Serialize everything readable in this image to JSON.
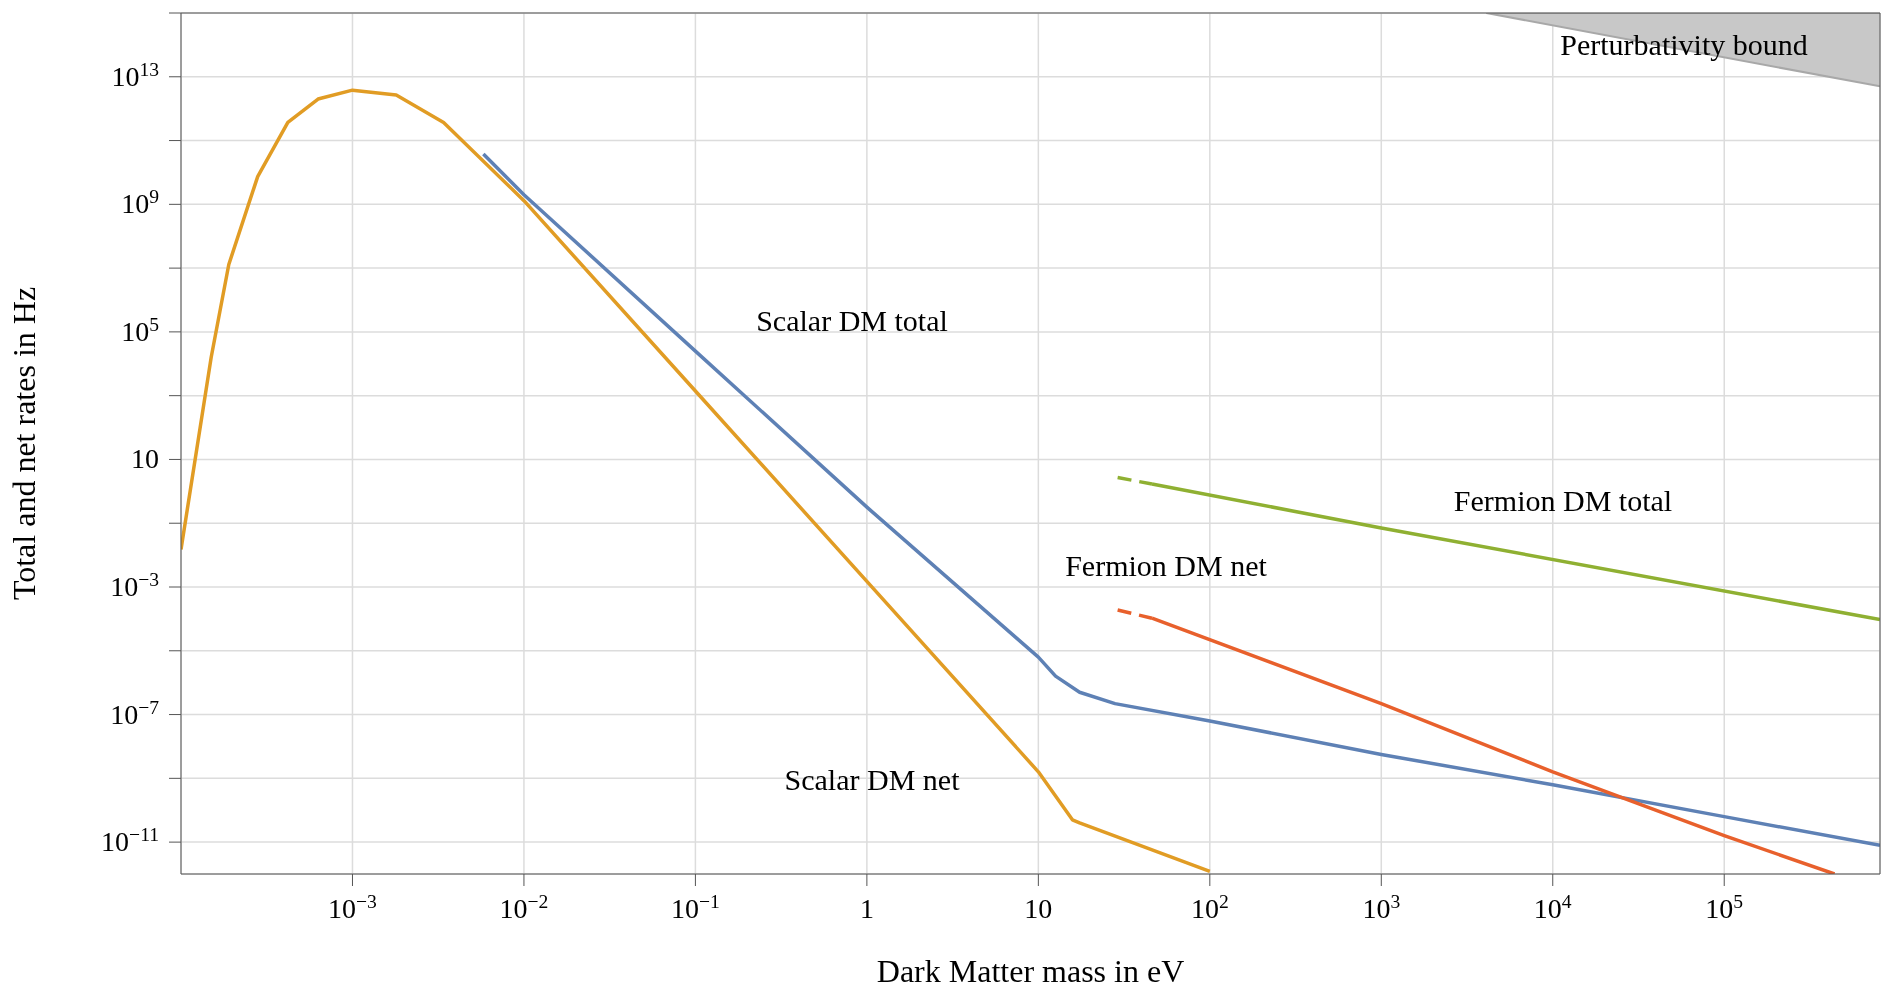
{
  "chart_data": {
    "type": "line",
    "xlabel": "Dark Matter mass in eV",
    "ylabel": "Total and net rates in Hz",
    "log": "xy",
    "grid": true,
    "marker": "none",
    "line_style": "solid",
    "xlim": [
      0.0001,
      810000
    ],
    "ylim": [
      1e-12,
      1000000000000000.0
    ],
    "xticks": [
      {
        "value": 0.001,
        "label": "10$^{−3}$"
      },
      {
        "value": 0.01,
        "label": "10$^{−2}$"
      },
      {
        "value": 0.1,
        "label": "10$^{−1}$"
      },
      1,
      10,
      {
        "value": 100,
        "label": "10$^{2}$"
      },
      {
        "value": 1000,
        "label": "10$^{3}$"
      },
      {
        "value": 10000,
        "label": "10$^{4}$"
      },
      {
        "value": 100000,
        "label": "10$^{5}$"
      }
    ],
    "yticks": [
      {
        "value": 1e-11,
        "label": "10$^{−11}$"
      },
      {
        "value": 1e-09,
        "label": null
      },
      {
        "value": 1e-07,
        "label": "10$^{−7}$"
      },
      {
        "value": 1e-05,
        "label": null
      },
      {
        "value": 0.001,
        "label": "10$^{−3}$"
      },
      {
        "value": 0.1,
        "label": null
      },
      10,
      {
        "value": 1000,
        "label": null
      },
      {
        "value": 100000,
        "label": "10$^{5}$"
      },
      {
        "value": 10000000,
        "label": null
      },
      {
        "value": 1000000000,
        "label": "10$^{9}$"
      },
      {
        "value": 100000000000,
        "label": null
      },
      {
        "value": 10000000000000,
        "label": "10$^{13}$"
      },
      {
        "value": 1000000000000000.0,
        "label": null
      }
    ],
    "series": [
      {
        "type": "area",
        "name": "Perturbativity bound",
        "color": "#c8c8c8",
        "x": [
          4100,
          810000
        ],
        "values": [
          1000000000000000.0,
          5000000000000.0
        ]
      },
      {
        "name": "Scalar DM total",
        "color": "#5e81b5",
        "x": [
          0.0058,
          0.01,
          0.1,
          1,
          10,
          12.6,
          17.4,
          28,
          100,
          1000,
          10000,
          100000,
          810000
        ],
        "values": [
          38000000000,
          2000000000,
          25000,
          0.32,
          6.3e-06,
          1.6e-06,
          5e-07,
          2.2e-07,
          6.3e-08,
          5.6e-09,
          6.3e-10,
          6.3e-11,
          7.9e-12
        ]
      },
      {
        "name": "Scalar DM net",
        "color": "#e19c24",
        "x": [
          0.0001,
          0.00015,
          0.00019,
          0.00028,
          0.00042,
          0.00063,
          0.001,
          0.0018,
          0.0034,
          0.01,
          0.1,
          1,
          10,
          15.8,
          17.4,
          100
        ],
        "values": [
          0.015,
          16000,
          13000000,
          7400000000,
          370000000000,
          2000000000000,
          3800000000000,
          2700000000000,
          370000000000,
          1300000000,
          1400,
          0.0015,
          1.6e-09,
          5e-11,
          4e-11,
          1.2e-12
        ]
      },
      {
        "color": "#8fb032",
        "line_style": "dashed",
        "x": [
          29,
          46
        ],
        "values": [
          2.7,
          1.7
        ]
      },
      {
        "name": "Fermion DM total",
        "color": "#8fb032",
        "x": [
          46,
          1000,
          810000
        ],
        "values": [
          1.7,
          0.071,
          9.5e-05
        ]
      },
      {
        "name": "Fermion DM net",
        "color": "#e8602c",
        "line_style": "dashed",
        "x": [
          29,
          46
        ],
        "values": [
          0.00019,
          0.000105
        ]
      },
      {
        "color": "#e8602c",
        "x": [
          46,
          1000,
          10000,
          100000,
          440000
        ],
        "values": [
          0.000105,
          2.2e-07,
          1.6e-09,
          1.6e-11,
          1e-12
        ]
      }
    ]
  }
}
